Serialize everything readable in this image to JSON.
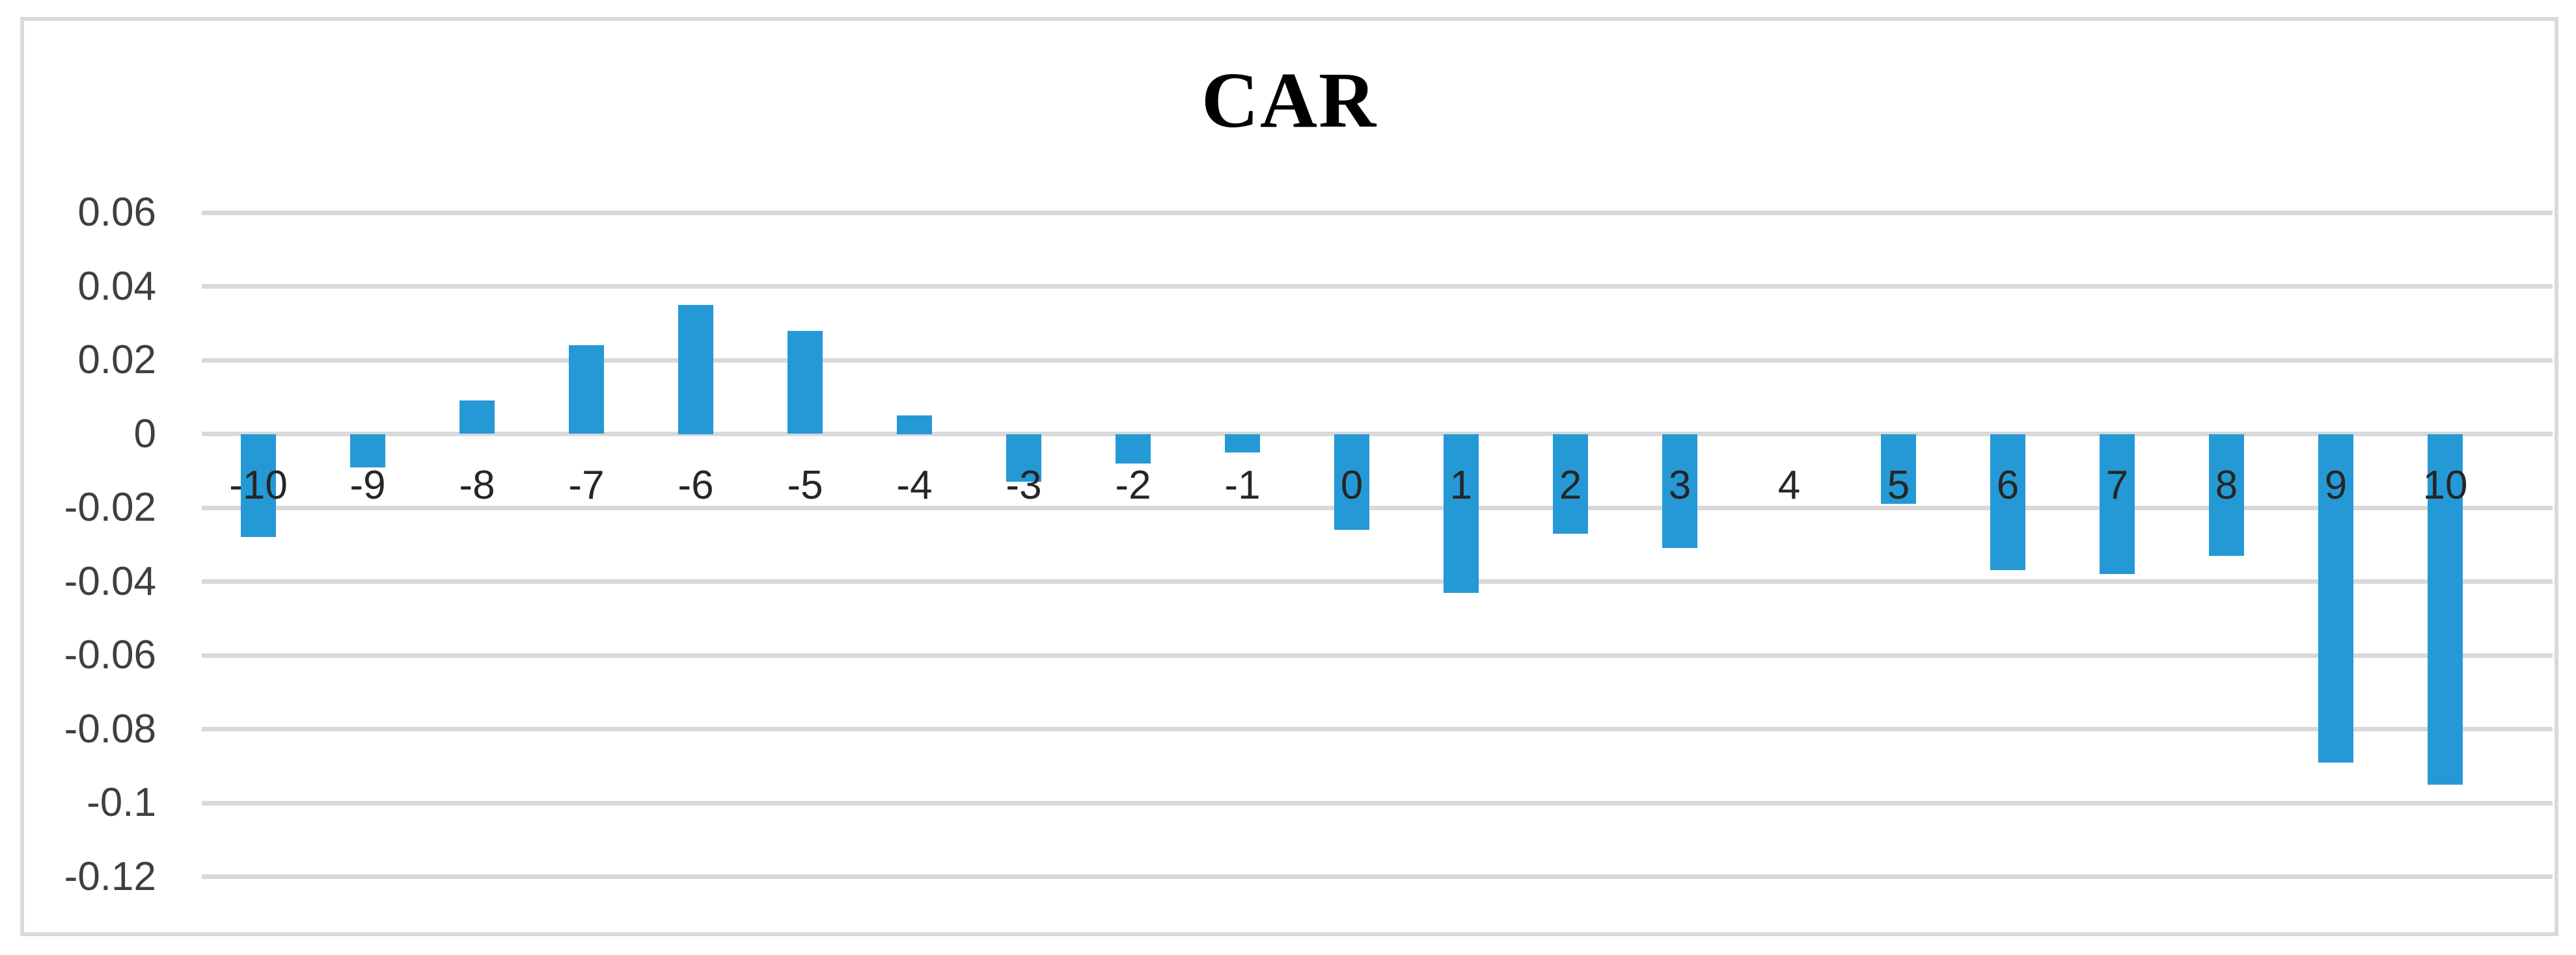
{
  "chart_data": {
    "type": "bar",
    "title": "CAR",
    "categories": [
      -10,
      -9,
      -8,
      -7,
      -6,
      -5,
      -4,
      -3,
      -2,
      -1,
      0,
      1,
      2,
      3,
      4,
      5,
      6,
      7,
      8,
      9,
      10
    ],
    "values": [
      -0.028,
      -0.009,
      0.009,
      0.024,
      0.035,
      0.028,
      0.005,
      -0.013,
      -0.008,
      -0.005,
      -0.026,
      -0.043,
      -0.027,
      -0.031,
      0.0,
      -0.019,
      -0.037,
      -0.038,
      -0.033,
      -0.089,
      -0.095
    ],
    "series_name": "CAR",
    "xlabel": "",
    "ylabel": "",
    "ylim": [
      -0.12,
      0.06
    ],
    "ytick_labels": [
      "0.06",
      "0.04",
      "0.02",
      "0",
      "-0.02",
      "-0.04",
      "-0.06",
      "-0.08",
      "-0.1",
      "-0.12"
    ],
    "ytick_values": [
      0.06,
      0.04,
      0.02,
      0,
      -0.02,
      -0.04,
      -0.06,
      -0.08,
      -0.1,
      -0.12
    ],
    "grid": "horizontal",
    "legend": "none",
    "bar_color": "#2499d6",
    "gridline_color": "#d9d9d9",
    "border_color": "#dadada",
    "tick_label_color": "#3f3f3f",
    "title_color": "#000000"
  }
}
